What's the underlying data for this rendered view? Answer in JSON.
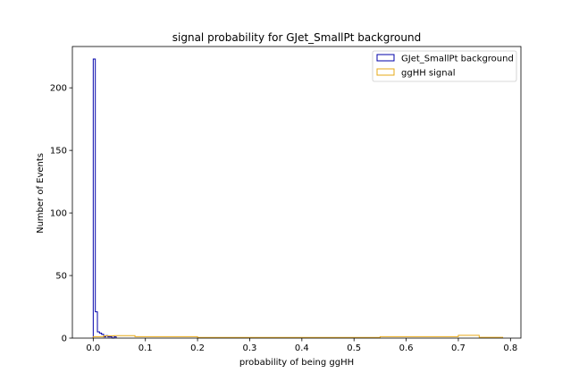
{
  "chart_data": {
    "type": "histogram",
    "title": "signal probability for GJet_SmallPt background",
    "xlabel": "probability of being ggHH",
    "ylabel": "Number of Events",
    "xlim": [
      -0.04,
      0.82
    ],
    "ylim": [
      0,
      233
    ],
    "xticks": [
      "0.0",
      "0.1",
      "0.2",
      "0.3",
      "0.4",
      "0.5",
      "0.6",
      "0.7",
      "0.8"
    ],
    "yticks": [
      "0",
      "50",
      "100",
      "150",
      "200"
    ],
    "grid": false,
    "legend_position": "upper right",
    "series": [
      {
        "name": "GJet_SmallPt background",
        "color": "#0000aa",
        "histtype": "step",
        "bin_edges": [
          0.0,
          0.004,
          0.008,
          0.012,
          0.016,
          0.02,
          0.024,
          0.028,
          0.032,
          0.036,
          0.04,
          0.044
        ],
        "counts": [
          223,
          21,
          5,
          4,
          3,
          1,
          2,
          1,
          1,
          0,
          1
        ]
      },
      {
        "name": "ggHH signal",
        "color": "#e6a817",
        "histtype": "step",
        "bin_edges": [
          0.0,
          0.02,
          0.04,
          0.08,
          0.2,
          0.55,
          0.7,
          0.74,
          0.785
        ],
        "counts": [
          1.2,
          1.8,
          2.0,
          1.2,
          0.5,
          1.2,
          2.2,
          0.6
        ]
      }
    ]
  }
}
